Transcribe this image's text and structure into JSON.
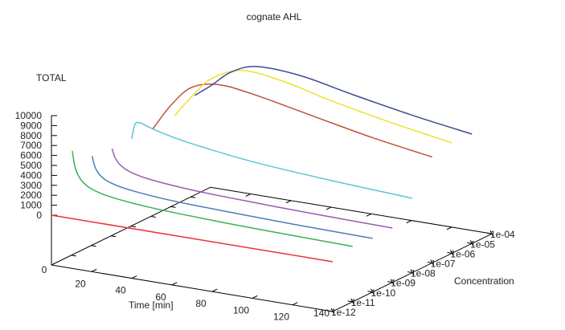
{
  "chart_data": {
    "type": "line",
    "title": "cognate AHL",
    "zlabel": "TOTAL",
    "xlabel": "Time [min]",
    "ylabel": "Concentration",
    "xlim": [
      0,
      140
    ],
    "zlim": [
      0,
      10000
    ],
    "x_ticks": [
      "0",
      "20",
      "40",
      "60",
      "80",
      "100",
      "120",
      "140"
    ],
    "x_tick_values": [
      0,
      20,
      40,
      60,
      80,
      100,
      120,
      140
    ],
    "y_ticks": [
      "1e-12",
      "1e-11",
      "1e-10",
      "1e-09",
      "1e-08",
      "1e-07",
      "1e-06",
      "1e-05",
      "1e-04"
    ],
    "z_ticks": [
      "0",
      "1000",
      "2000",
      "3000",
      "4000",
      "5000",
      "6000",
      "7000",
      "8000",
      "9000",
      "10000"
    ],
    "z_tick_values": [
      0,
      1000,
      2000,
      3000,
      4000,
      5000,
      6000,
      7000,
      8000,
      9000,
      10000
    ],
    "series": [
      {
        "concentration": "1e-12",
        "color": "#e8333a",
        "t": [
          0,
          140
        ],
        "z": [
          0,
          0
        ]
      },
      {
        "concentration": "1e-11",
        "color": "#3cb054",
        "t": [
          0.5,
          2,
          5,
          10,
          20,
          40,
          70,
          100,
          140
        ],
        "z": [
          5500,
          3800,
          2700,
          2000,
          1500,
          1100,
          850,
          700,
          560
        ]
      },
      {
        "concentration": "1e-10",
        "color": "#4a7cb8",
        "t": [
          0.5,
          2,
          5,
          10,
          20,
          40,
          70,
          100,
          140
        ],
        "z": [
          4000,
          2900,
          2100,
          1600,
          1200,
          850,
          650,
          500,
          390
        ]
      },
      {
        "concentration": "1e-09",
        "color": "#9a5cae",
        "t": [
          0.5,
          2,
          5,
          10,
          20,
          40,
          70,
          100,
          140
        ],
        "z": [
          3770,
          2900,
          2200,
          1700,
          1300,
          950,
          730,
          580,
          460
        ]
      },
      {
        "concentration": "1e-08",
        "color": "#5cc6d6",
        "t": [
          0.3,
          2,
          4.5,
          8,
          15,
          30,
          60,
          100,
          140
        ],
        "z": [
          3760,
          5300,
          5520,
          5300,
          4900,
          4300,
          3500,
          2900,
          2470
        ]
      },
      {
        "concentration": "1e-07",
        "color": "#c0513c",
        "t": [
          1,
          10,
          20,
          33,
          50,
          80,
          110,
          140
        ],
        "z": [
          3830,
          6500,
          8600,
          9350,
          9000,
          7800,
          6600,
          5640
        ]
      },
      {
        "concentration": "1e-06",
        "color": "#ede232",
        "t": [
          2,
          10,
          20,
          35,
          55,
          80,
          110,
          140
        ],
        "z": [
          4220,
          6300,
          8500,
          9850,
          9500,
          8300,
          7100,
          6080
        ]
      },
      {
        "concentration": "1e-05",
        "color": "#3d4b8f",
        "t": [
          2,
          10,
          20,
          33,
          55,
          80,
          110,
          140
        ],
        "z": [
          5270,
          6500,
          8200,
          9200,
          9000,
          8000,
          6900,
          5990
        ]
      }
    ]
  }
}
